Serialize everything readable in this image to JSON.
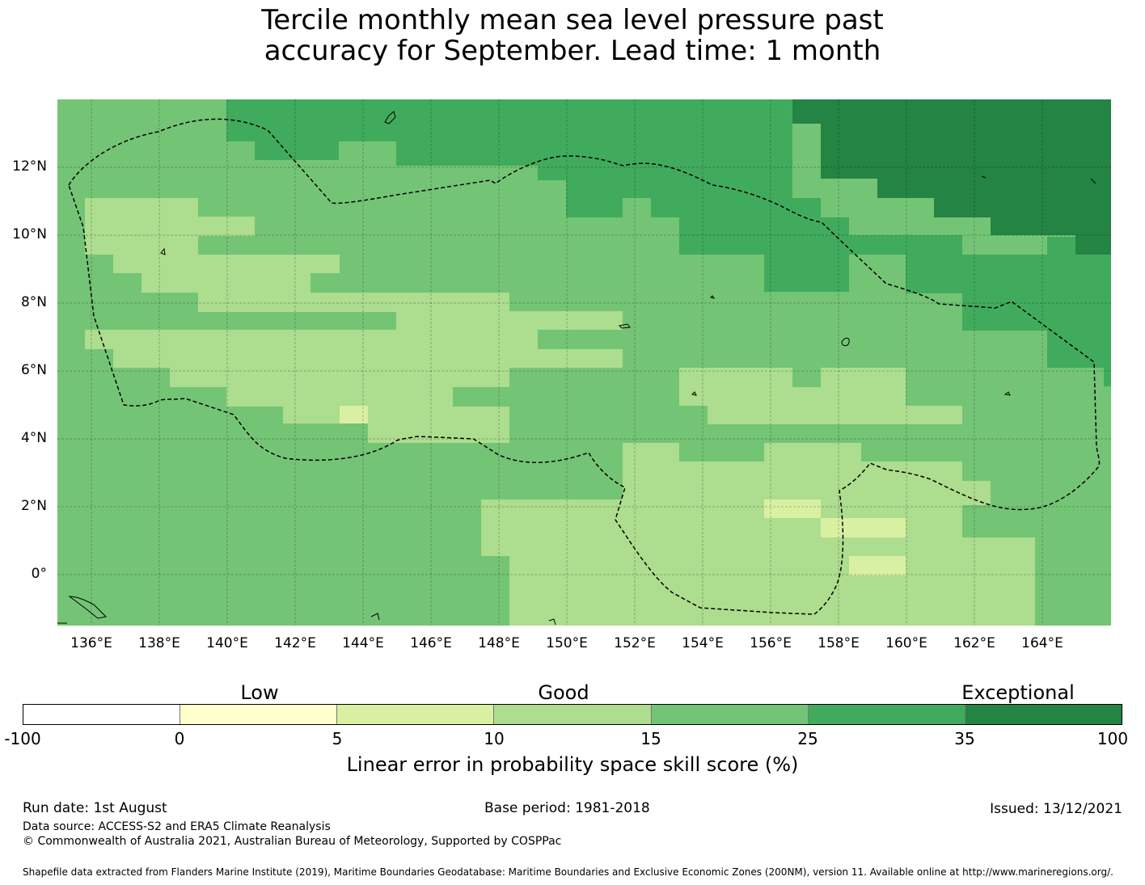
{
  "title": {
    "line1": "Tercile monthly mean sea level pressure past",
    "line2": "accuracy for September. Lead time: 1 month"
  },
  "map": {
    "latitude_labels": [
      "12°N",
      "10°N",
      "8°N",
      "6°N",
      "4°N",
      "2°N",
      "0°"
    ],
    "longitude_labels": [
      "136°E",
      "138°E",
      "140°E",
      "142°E",
      "144°E",
      "146°E",
      "148°E",
      "150°E",
      "152°E",
      "154°E",
      "156°E",
      "158°E",
      "160°E",
      "162°E",
      "164°E"
    ],
    "boundary_style": "dashed black line (EEZ boundary)",
    "gridlines": true
  },
  "colorbar": {
    "categories": [
      "Low",
      "Good",
      "Exceptional"
    ],
    "ticks": [
      "-100",
      "0",
      "5",
      "10",
      "15",
      "25",
      "35",
      "100"
    ],
    "colors": [
      "#ffffff",
      "#ffffcc",
      "#d9f0a3",
      "#addd8e",
      "#74c476",
      "#41ab5d",
      "#238443"
    ],
    "label": "Linear error in probability space skill score (%)"
  },
  "footer": {
    "run_date": "Run date: 1st August",
    "base_period": "Base period: 1981-2018",
    "issued": "Issued: 13/12/2021",
    "data_source": "Data source: ACCESS-S2 and ERA5 Climate Reanalysis",
    "copyright": "© Commonwealth of Australia 2021, Australian Bureau of Meteorology, Supported by COSPPac",
    "shapefile": "Shapefile data extracted from Flanders Marine Institute (2019), Maritime Boundaries Geodatabase: Maritime Boundaries and Exclusive Economic Zones (200NM), version 11. Available online at http://www.marineregions.org/."
  }
}
